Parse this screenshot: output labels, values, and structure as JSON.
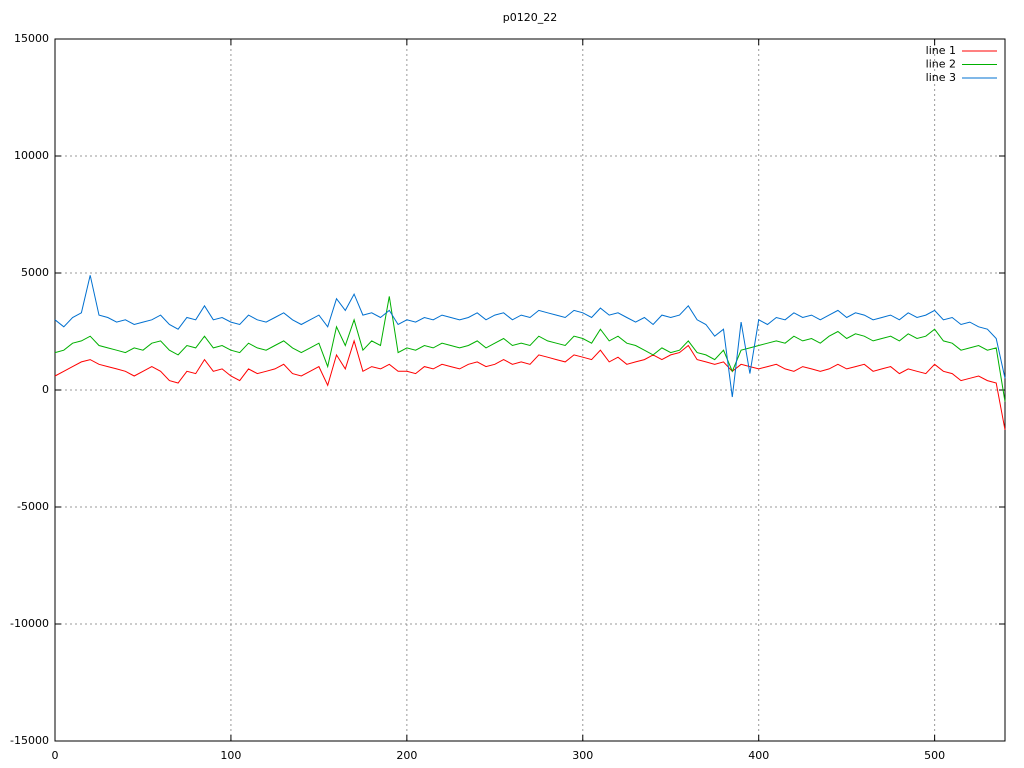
{
  "chart_data": {
    "type": "line",
    "title": "p0120_22",
    "x": [
      0,
      5,
      10,
      15,
      20,
      25,
      30,
      35,
      40,
      45,
      50,
      55,
      60,
      65,
      70,
      75,
      80,
      85,
      90,
      95,
      100,
      105,
      110,
      115,
      120,
      125,
      130,
      135,
      140,
      145,
      150,
      155,
      160,
      165,
      170,
      175,
      180,
      185,
      190,
      195,
      200,
      205,
      210,
      215,
      220,
      225,
      230,
      235,
      240,
      245,
      250,
      255,
      260,
      265,
      270,
      275,
      280,
      285,
      290,
      295,
      300,
      305,
      310,
      315,
      320,
      325,
      330,
      335,
      340,
      345,
      350,
      355,
      360,
      365,
      370,
      375,
      380,
      385,
      390,
      395,
      400,
      405,
      410,
      415,
      420,
      425,
      430,
      435,
      440,
      445,
      450,
      455,
      460,
      465,
      470,
      475,
      480,
      485,
      490,
      495,
      500,
      505,
      510,
      515,
      520,
      525,
      530,
      535,
      540
    ],
    "series": [
      {
        "name": "line 1",
        "color": "#ff0000",
        "values": [
          600,
          800,
          1000,
          1200,
          1300,
          1100,
          1000,
          900,
          800,
          600,
          800,
          1000,
          800,
          400,
          300,
          800,
          700,
          1300,
          800,
          900,
          600,
          400,
          900,
          700,
          800,
          900,
          1100,
          700,
          600,
          800,
          1000,
          200,
          1500,
          900,
          2100,
          800,
          1000,
          900,
          1100,
          800,
          800,
          700,
          1000,
          900,
          1100,
          1000,
          900,
          1100,
          1200,
          1000,
          1100,
          1300,
          1100,
          1200,
          1100,
          1500,
          1400,
          1300,
          1200,
          1500,
          1400,
          1300,
          1700,
          1200,
          1400,
          1100,
          1200,
          1300,
          1500,
          1300,
          1500,
          1600,
          1900,
          1300,
          1200,
          1100,
          1200,
          800,
          1100,
          1000,
          900,
          1000,
          1100,
          900,
          800,
          1000,
          900,
          800,
          900,
          1100,
          900,
          1000,
          1100,
          800,
          900,
          1000,
          700,
          900,
          800,
          700,
          1100,
          800,
          700,
          400,
          500,
          600,
          400,
          300,
          -1700
        ]
      },
      {
        "name": "line 2",
        "color": "#00b000",
        "values": [
          1600,
          1700,
          2000,
          2100,
          2300,
          1900,
          1800,
          1700,
          1600,
          1800,
          1700,
          2000,
          2100,
          1700,
          1500,
          1900,
          1800,
          2300,
          1800,
          1900,
          1700,
          1600,
          2000,
          1800,
          1700,
          1900,
          2100,
          1800,
          1600,
          1800,
          2000,
          1000,
          2700,
          1900,
          3000,
          1700,
          2100,
          1900,
          4000,
          1600,
          1800,
          1700,
          1900,
          1800,
          2000,
          1900,
          1800,
          1900,
          2100,
          1800,
          2000,
          2200,
          1900,
          2000,
          1900,
          2300,
          2100,
          2000,
          1900,
          2300,
          2200,
          2000,
          2600,
          2100,
          2300,
          2000,
          1900,
          1700,
          1500,
          1800,
          1600,
          1700,
          2100,
          1600,
          1500,
          1300,
          1700,
          800,
          1700,
          1800,
          1900,
          2000,
          2100,
          2000,
          2300,
          2100,
          2200,
          2000,
          2300,
          2500,
          2200,
          2400,
          2300,
          2100,
          2200,
          2300,
          2100,
          2400,
          2200,
          2300,
          2600,
          2100,
          2000,
          1700,
          1800,
          1900,
          1700,
          1800,
          -500
        ]
      },
      {
        "name": "line 3",
        "color": "#0070d0",
        "values": [
          3000,
          2700,
          3100,
          3300,
          4900,
          3200,
          3100,
          2900,
          3000,
          2800,
          2900,
          3000,
          3200,
          2800,
          2600,
          3100,
          3000,
          3600,
          3000,
          3100,
          2900,
          2800,
          3200,
          3000,
          2900,
          3100,
          3300,
          3000,
          2800,
          3000,
          3200,
          2700,
          3900,
          3400,
          4100,
          3200,
          3300,
          3100,
          3400,
          2800,
          3000,
          2900,
          3100,
          3000,
          3200,
          3100,
          3000,
          3100,
          3300,
          3000,
          3200,
          3300,
          3000,
          3200,
          3100,
          3400,
          3300,
          3200,
          3100,
          3400,
          3300,
          3100,
          3500,
          3200,
          3300,
          3100,
          2900,
          3100,
          2800,
          3200,
          3100,
          3200,
          3600,
          3000,
          2800,
          2300,
          2600,
          -300,
          2900,
          700,
          3000,
          2800,
          3100,
          3000,
          3300,
          3100,
          3200,
          3000,
          3200,
          3400,
          3100,
          3300,
          3200,
          3000,
          3100,
          3200,
          3000,
          3300,
          3100,
          3200,
          3400,
          3000,
          3100,
          2800,
          2900,
          2700,
          2600,
          2200,
          500
        ]
      }
    ],
    "xlim": [
      0,
      540
    ],
    "ylim": [
      -15000,
      15000
    ],
    "xticks": [
      0,
      100,
      200,
      300,
      400,
      500
    ],
    "yticks": [
      -15000,
      -10000,
      -5000,
      0,
      5000,
      10000,
      15000
    ],
    "grid": true,
    "legend": "top-right"
  }
}
